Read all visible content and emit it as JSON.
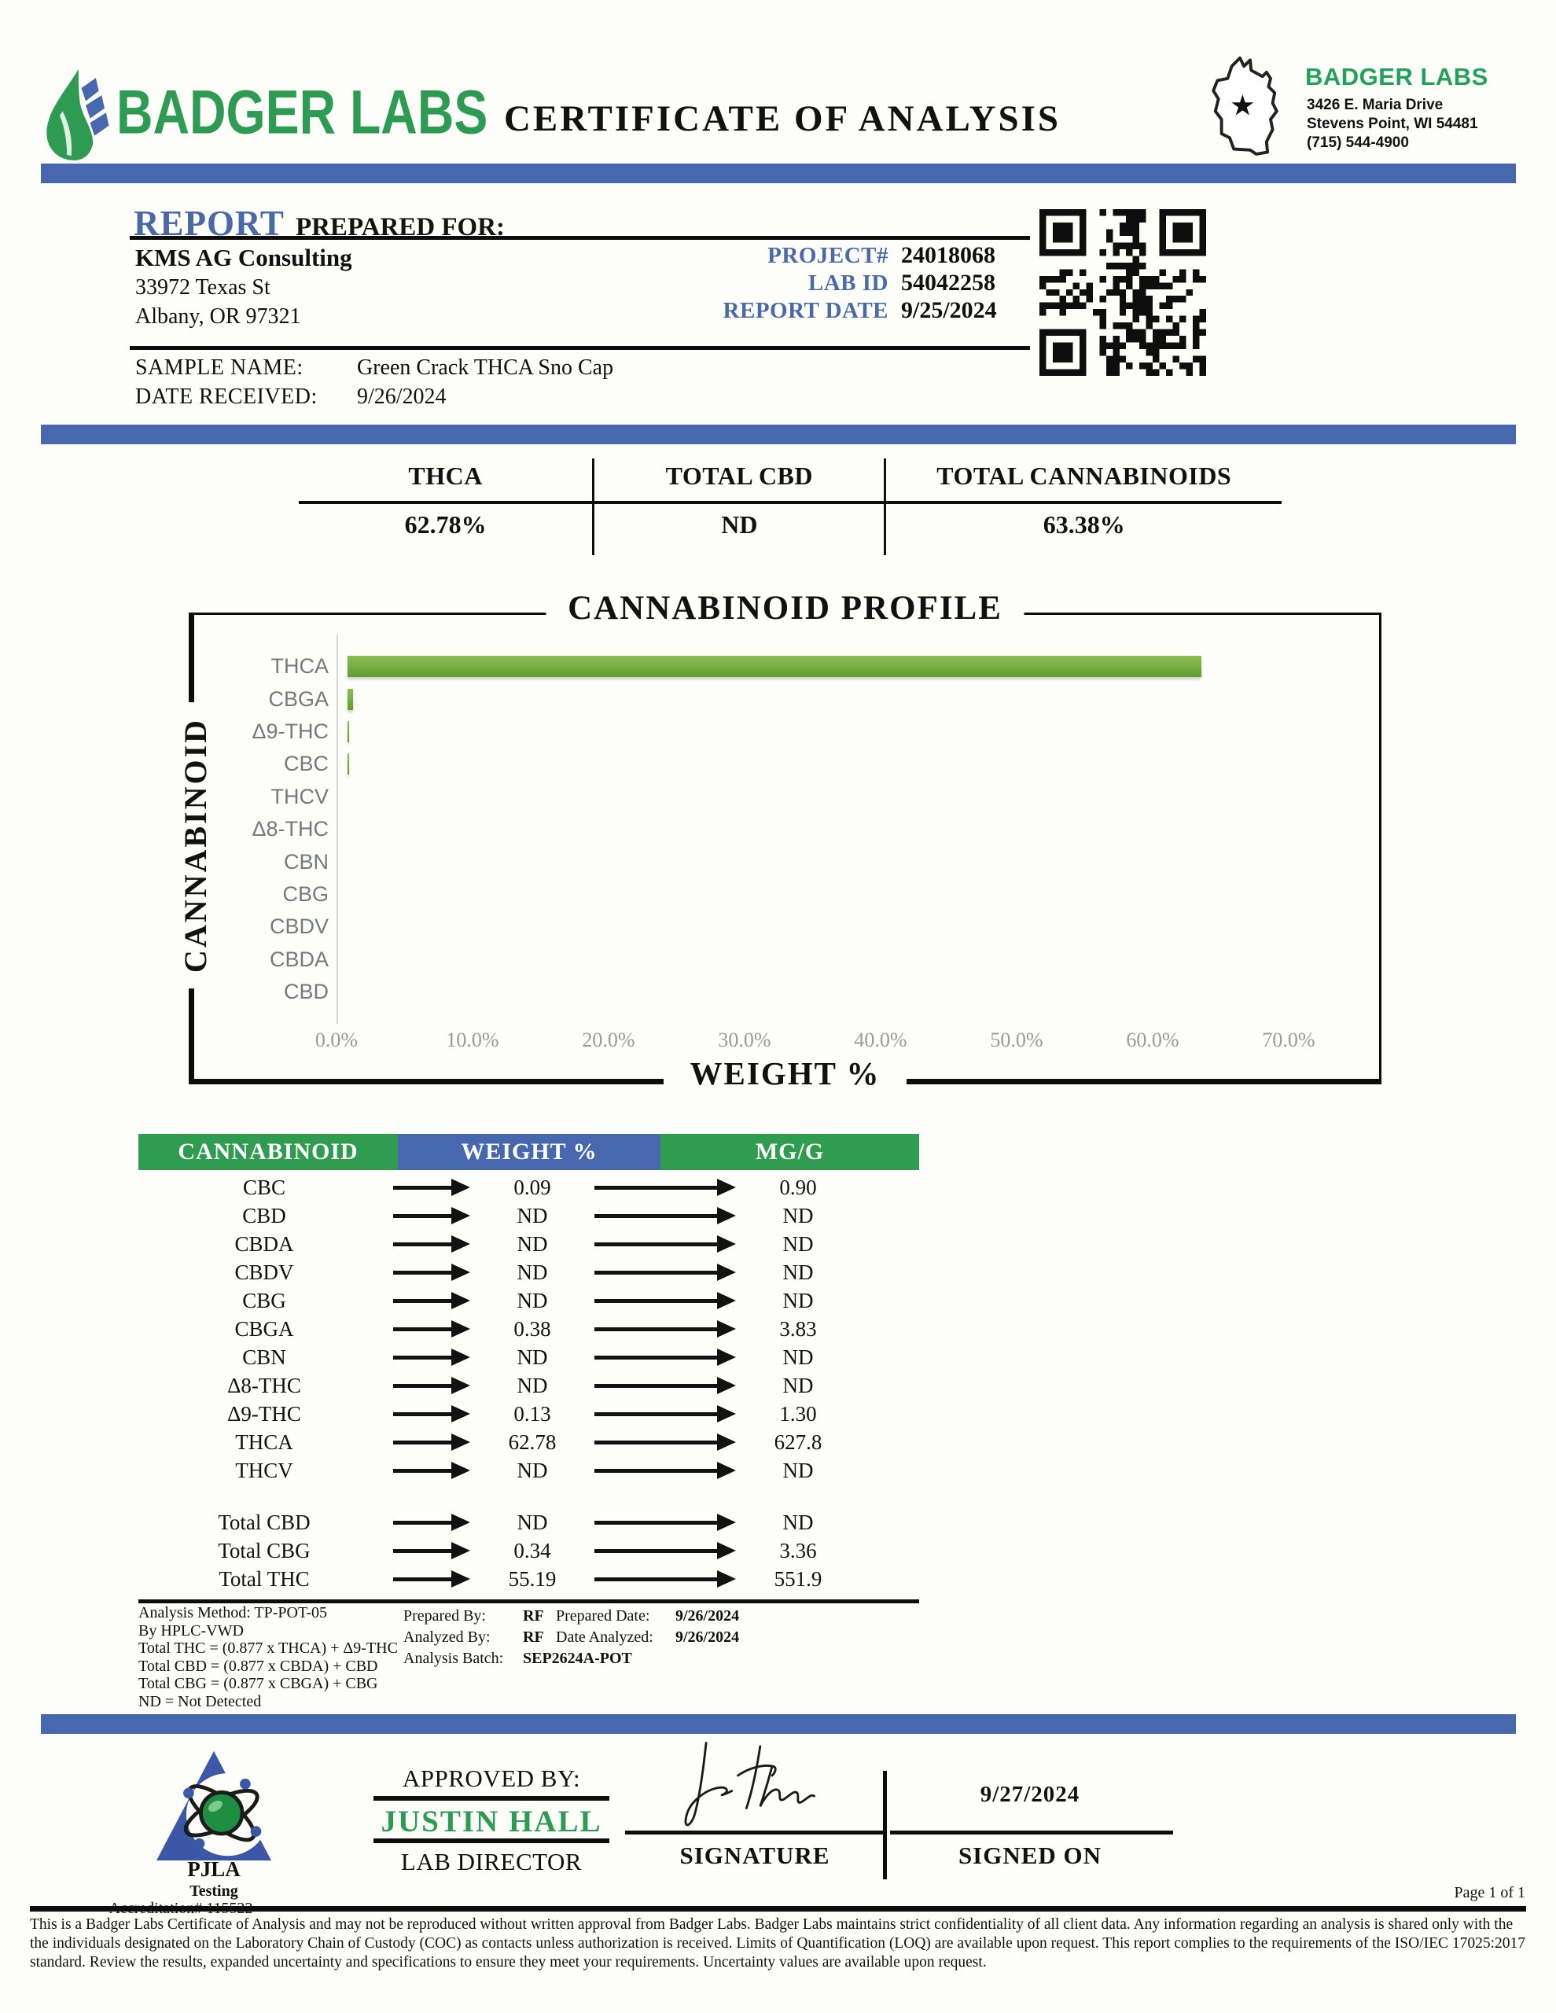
{
  "colors": {
    "blue_bar": "#4767AE",
    "brand_green": "#2E9B52",
    "table_green": "#2F9C50",
    "table_blue": "#4767AE",
    "bar_green": "#72AC3D",
    "label_blue": "#4A69A8"
  },
  "header": {
    "brand": "BADGER LABS",
    "title": "CERTIFICATE OF ANALYSIS",
    "badge": {
      "name": "BADGER LABS",
      "address1": "3426 E. Maria Drive",
      "address2": "Stevens Point, WI 54481",
      "phone": "(715) 544-4900"
    }
  },
  "report": {
    "heading_primary": "REPORT",
    "heading_secondary": "PREPARED FOR:",
    "client": {
      "name": "KMS AG Consulting",
      "address1": "33972 Texas St",
      "address2": "Albany, OR 97321"
    },
    "meta": [
      {
        "label": "PROJECT#",
        "value": "24018068"
      },
      {
        "label": "LAB ID",
        "value": "54042258"
      },
      {
        "label": "REPORT DATE",
        "value": "9/25/2024"
      }
    ]
  },
  "sample": {
    "name_label": "SAMPLE NAME:",
    "name": "Green Crack THCA Sno Cap",
    "received_label": "DATE RECEIVED:",
    "received": "9/26/2024"
  },
  "summary": {
    "columns": [
      {
        "label": "THCA",
        "value": "62.78%"
      },
      {
        "label": "TOTAL CBD",
        "value": "ND"
      },
      {
        "label": "TOTAL CANNABINOIDS",
        "value": "63.38%"
      }
    ]
  },
  "chart_data": {
    "type": "bar",
    "orientation": "horizontal",
    "title": "CANNABINOID PROFILE",
    "xlabel": "WEIGHT %",
    "ylabel": "CANNABINOID",
    "categories": [
      "THCA",
      "CBGA",
      "Δ9-THC",
      "CBC",
      "THCV",
      "Δ8-THC",
      "CBN",
      "CBG",
      "CBDV",
      "CBDA",
      "CBD"
    ],
    "values": [
      62.78,
      0.38,
      0.13,
      0.09,
      0,
      0,
      0,
      0,
      0,
      0,
      0
    ],
    "xlim": [
      0,
      70
    ],
    "xticks": [
      "0.0%",
      "10.0%",
      "20.0%",
      "30.0%",
      "40.0%",
      "50.0%",
      "60.0%",
      "70.0%"
    ],
    "bar_color": "#72AC3D",
    "grid": false,
    "legend": false
  },
  "table": {
    "headers": [
      "CANNABINOID",
      "WEIGHT %",
      "MG/G"
    ],
    "rows": [
      {
        "name": "CBC",
        "weight": "0.09",
        "mgg": "0.90"
      },
      {
        "name": "CBD",
        "weight": "ND",
        "mgg": "ND"
      },
      {
        "name": "CBDA",
        "weight": "ND",
        "mgg": "ND"
      },
      {
        "name": "CBDV",
        "weight": "ND",
        "mgg": "ND"
      },
      {
        "name": "CBG",
        "weight": "ND",
        "mgg": "ND"
      },
      {
        "name": "CBGA",
        "weight": "0.38",
        "mgg": "3.83"
      },
      {
        "name": "CBN",
        "weight": "ND",
        "mgg": "ND"
      },
      {
        "name": "Δ8-THC",
        "weight": "ND",
        "mgg": "ND"
      },
      {
        "name": "Δ9-THC",
        "weight": "0.13",
        "mgg": "1.30"
      },
      {
        "name": "THCA",
        "weight": "62.78",
        "mgg": "627.8"
      },
      {
        "name": "THCV",
        "weight": "ND",
        "mgg": "ND"
      }
    ],
    "totals": [
      {
        "name": "Total CBD",
        "weight": "ND",
        "mgg": "ND"
      },
      {
        "name": "Total CBG",
        "weight": "0.34",
        "mgg": "3.36"
      },
      {
        "name": "Total THC",
        "weight": "55.19",
        "mgg": "551.9"
      }
    ]
  },
  "footnotes": {
    "left_lines": [
      "Analysis Method: TP-POT-05",
      "By HPLC-VWD",
      "Total THC = (0.877 x  THCA) + Δ9-THC",
      "Total CBD = (0.877 x  CBDA) + CBD",
      "Total CBG = (0.877 x  CBGA) + CBG",
      "ND = Not Detected"
    ],
    "center": [
      {
        "label": "Prepared By:",
        "value": "RF"
      },
      {
        "label": "Analyzed By:",
        "value": "RF"
      },
      {
        "label": "Analysis Batch:",
        "value": "SEP2624A-POT"
      }
    ],
    "right": [
      {
        "label": "Prepared Date:",
        "value": "9/26/2024"
      },
      {
        "label": "Date Analyzed:",
        "value": "9/26/2024"
      }
    ]
  },
  "approval": {
    "pjla_name": "PJLA",
    "pjla_sub": "Testing",
    "accreditation": "Accreditation# 115522",
    "approved_by_label": "APPROVED BY:",
    "approver": "JUSTIN HALL",
    "role": "LAB DIRECTOR",
    "signature_label": "SIGNATURE",
    "signed_on_label": "SIGNED ON",
    "signed_date": "9/27/2024"
  },
  "page": {
    "page_number": "Page 1 of 1"
  },
  "disclaimer": "This is a Badger Labs Certificate of Analysis and may not be reproduced without written approval from Badger Labs. Badger Labs maintains strict confidentiality of all client data. Any information regarding an analysis is shared only with the the individuals designated on the Laboratory Chain of Custody (COC) as contacts unless authorization is received. Limits of Quantification (LOQ) are available upon request. This report complies to the requirements of the ISO/IEC 17025:2017 standard. Review the results, expanded uncertainty and specifications to ensure they meet your requirements. Uncertainty values are available upon request."
}
